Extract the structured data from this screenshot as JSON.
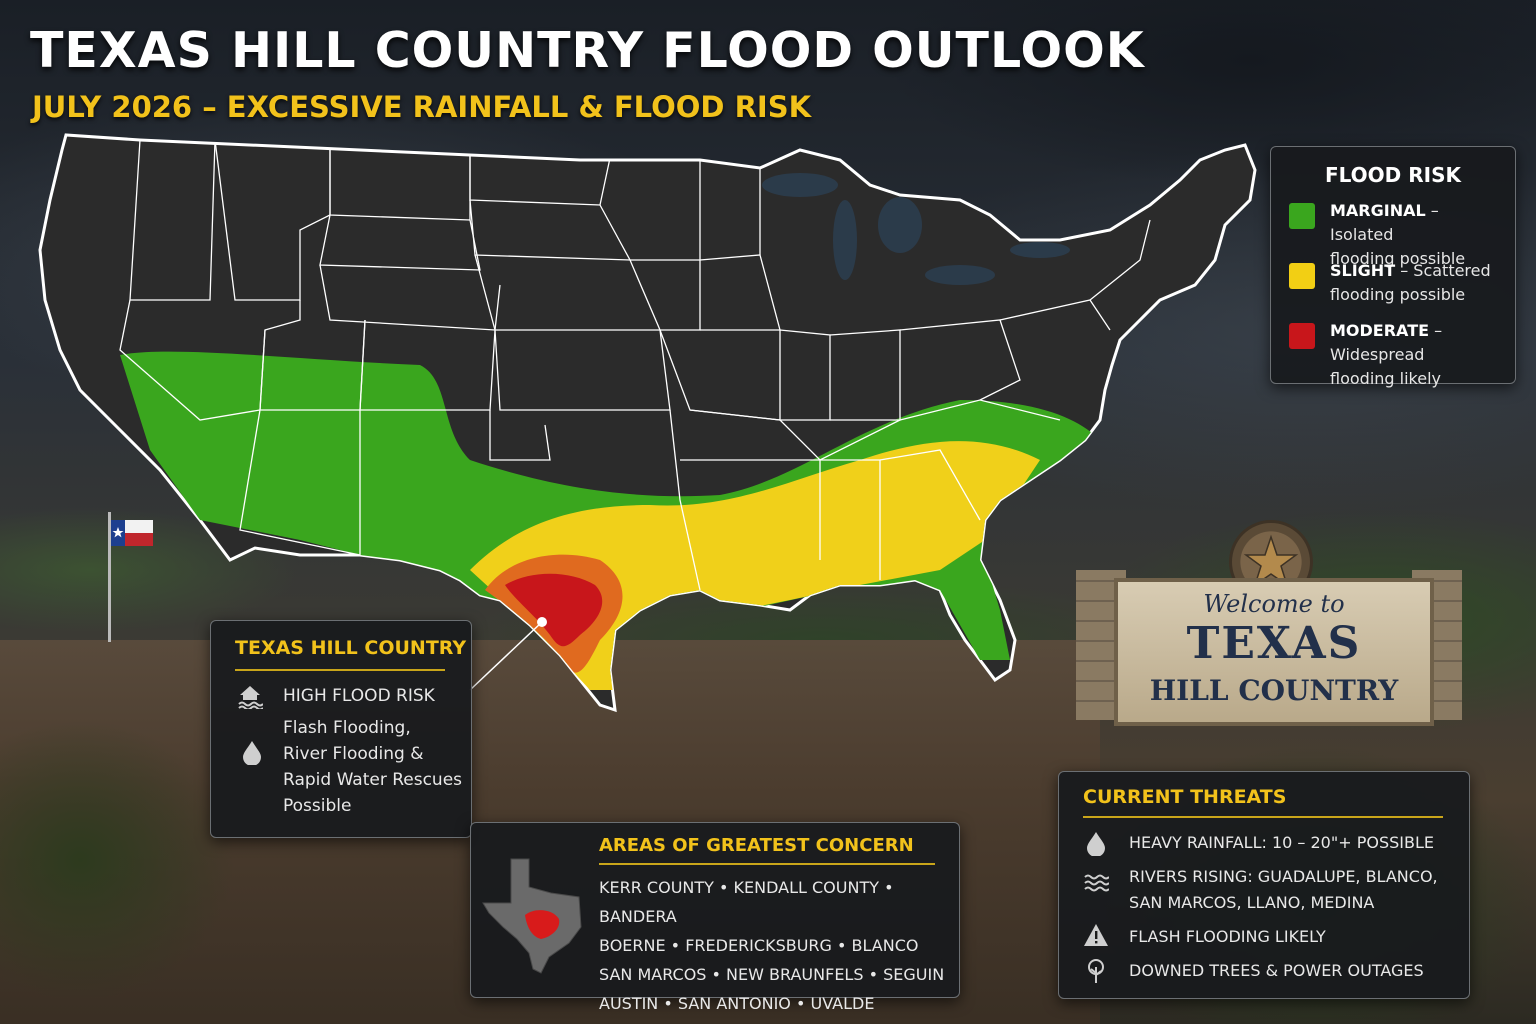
{
  "header": {
    "title": "TEXAS HILL COUNTRY FLOOD OUTLOOK",
    "subtitle": "JULY 2026 – EXCESSIVE RAINFALL & FLOOD RISK"
  },
  "colors": {
    "marginal": "#3aa61e",
    "slight": "#f0d01a",
    "moderate": "#c8161b",
    "accent": "#f2c21b",
    "states": "#2b2b2b"
  },
  "legend": {
    "title": "FLOOD RISK",
    "items": [
      {
        "level": "MARGINAL",
        "line1": " – Isolated",
        "line2": "flooding possible",
        "color": "#3aa61e"
      },
      {
        "level": "SLIGHT",
        "line1": " – Scattered",
        "line2": "flooding possible",
        "color": "#f2cf14"
      },
      {
        "level": "MODERATE",
        "line1": " – Widespread",
        "line2": "flooding likely",
        "color": "#c8161b"
      }
    ]
  },
  "hill_country": {
    "title": "TEXAS HILL COUNTRY",
    "risk": "HIGH FLOOD RISK",
    "risk_icon": "house-flood-icon",
    "detail_icon": "water-drop-icon",
    "detail": [
      "Flash Flooding,",
      "River Flooding &",
      "Rapid Water Rescues",
      "Possible"
    ]
  },
  "concern": {
    "title": "AREAS OF GREATEST CONCERN",
    "map_icon": "texas-outline-icon",
    "lines": [
      "KERR COUNTY • KENDALL COUNTY • BANDERA",
      "BOERNE • FREDERICKSBURG • BLANCO",
      "SAN MARCOS • NEW BRAUNFELS • SEGUIN",
      "AUSTIN • SAN ANTONIO • UVALDE"
    ]
  },
  "threats": {
    "title": "CURRENT THREATS",
    "items": [
      {
        "icon": "water-drop-icon",
        "lines": [
          "HEAVY RAINFALL: 10 – 20\"+ POSSIBLE"
        ]
      },
      {
        "icon": "waves-icon",
        "lines": [
          "RIVERS RISING: GUADALUPE, BLANCO,",
          "SAN MARCOS, LLANO, MEDINA"
        ]
      },
      {
        "icon": "warning-triangle-icon",
        "lines": [
          "FLASH FLOODING LIKELY"
        ]
      },
      {
        "icon": "tree-icon",
        "lines": [
          "DOWNED TREES & POWER OUTAGES"
        ]
      }
    ]
  },
  "sign": {
    "line1": "Welcome to",
    "line2": "TEXAS",
    "line3": "HILL COUNTRY",
    "emblem": "star-emblem-icon"
  },
  "flag": {
    "icon": "texas-flag-icon"
  }
}
